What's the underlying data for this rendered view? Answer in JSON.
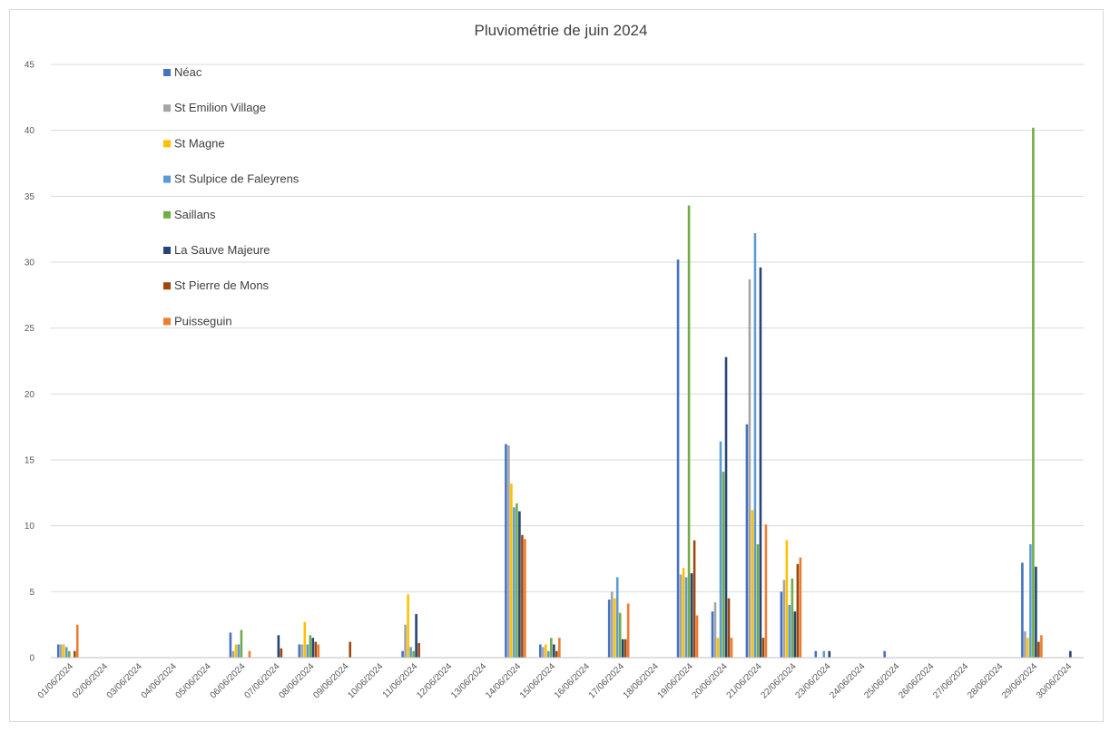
{
  "chart_data": {
    "type": "bar",
    "title": "Pluviométrie de juin 2024",
    "xlabel": "",
    "ylabel": "",
    "ylim": [
      0,
      45
    ],
    "yticks": [
      0,
      5,
      10,
      15,
      20,
      25,
      30,
      35,
      40,
      45
    ],
    "grid": true,
    "legend_position": "top-left",
    "categories": [
      "01/06/2024",
      "02/06/2024",
      "03/06/2024",
      "04/06/2024",
      "05/06/2024",
      "06/06/2024",
      "07/06/2024",
      "08/06/2024",
      "09/06/2024",
      "10/06/2024",
      "11/06/2024",
      "12/06/2024",
      "13/06/2024",
      "14/06/2024",
      "15/06/2024",
      "16/06/2024",
      "17/06/2024",
      "18/06/2024",
      "19/06/2024",
      "20/06/2024",
      "21/06/2024",
      "22/06/2024",
      "23/06/2024",
      "24/06/2024",
      "25/06/2024",
      "26/06/2024",
      "27/06/2024",
      "28/06/2024",
      "29/06/2024",
      "30/06/2024"
    ],
    "series": [
      {
        "name": "Néac",
        "color": "#4472C4",
        "values": [
          1.0,
          0,
          0,
          0,
          0,
          1.9,
          0,
          1.0,
          0,
          0,
          0.5,
          0,
          0,
          16.2,
          1.0,
          0,
          4.4,
          0,
          30.2,
          3.5,
          17.7,
          5.0,
          0.5,
          0,
          0.5,
          0,
          0,
          0,
          7.2,
          0
        ]
      },
      {
        "name": "St Emilion Village",
        "color": "#A5A5A5",
        "values": [
          1.0,
          0,
          0,
          0,
          0,
          0.5,
          0,
          1.0,
          0,
          0,
          2.5,
          0,
          0,
          16.1,
          0.8,
          0,
          5.0,
          0,
          6.3,
          4.2,
          28.7,
          5.9,
          0,
          0,
          0,
          0,
          0,
          0,
          2.0,
          0
        ]
      },
      {
        "name": "St Magne",
        "color": "#FFC000",
        "values": [
          1.0,
          0,
          0,
          0,
          0,
          1.0,
          0,
          2.7,
          0,
          0,
          4.8,
          0,
          0,
          13.2,
          1.0,
          0,
          4.5,
          0,
          6.8,
          1.5,
          11.2,
          8.9,
          0,
          0,
          0,
          0,
          0,
          0,
          1.5,
          0
        ]
      },
      {
        "name": "St Sulpice de Faleyrens",
        "color": "#5B9BD5",
        "values": [
          0.8,
          0,
          0,
          0,
          0,
          1.0,
          0,
          1.0,
          0,
          0,
          0.8,
          0,
          0,
          11.4,
          0.5,
          0,
          6.1,
          0,
          6.1,
          16.4,
          32.2,
          4.0,
          0.5,
          0,
          0,
          0,
          0,
          0,
          8.6,
          0
        ]
      },
      {
        "name": "Saillans",
        "color": "#70AD47",
        "values": [
          0.5,
          0,
          0,
          0,
          0,
          2.1,
          0,
          1.7,
          0,
          0,
          0.5,
          0,
          0,
          11.7,
          1.5,
          0,
          3.4,
          0,
          34.3,
          14.1,
          8.6,
          6.0,
          0,
          0,
          0,
          0,
          0,
          0,
          40.2,
          0
        ]
      },
      {
        "name": "La Sauve Majeure",
        "color": "#264478",
        "values": [
          0,
          0,
          0,
          0,
          0,
          0,
          1.7,
          1.5,
          0,
          0,
          3.3,
          0,
          0,
          11.1,
          1.0,
          0,
          1.4,
          0,
          6.4,
          22.8,
          29.6,
          3.5,
          0.5,
          0,
          0,
          0,
          0,
          0,
          6.9,
          0.5
        ]
      },
      {
        "name": "St Pierre de Mons",
        "color": "#9E480E",
        "values": [
          0.5,
          0,
          0,
          0,
          0,
          0,
          0.7,
          1.2,
          1.2,
          0,
          1.1,
          0,
          0,
          9.3,
          0.5,
          0,
          1.4,
          0,
          8.9,
          4.5,
          1.5,
          7.1,
          0,
          0,
          0,
          0,
          0,
          0,
          1.2,
          0
        ]
      },
      {
        "name": "Puisseguin",
        "color": "#ED7D31",
        "values": [
          2.5,
          0,
          0,
          0,
          0,
          0.5,
          0,
          1.0,
          0,
          0,
          0,
          0,
          0,
          9.0,
          1.5,
          0,
          4.1,
          0,
          3.2,
          1.5,
          10.1,
          7.6,
          0,
          0,
          0,
          0,
          0,
          0,
          1.7,
          0
        ]
      }
    ]
  }
}
